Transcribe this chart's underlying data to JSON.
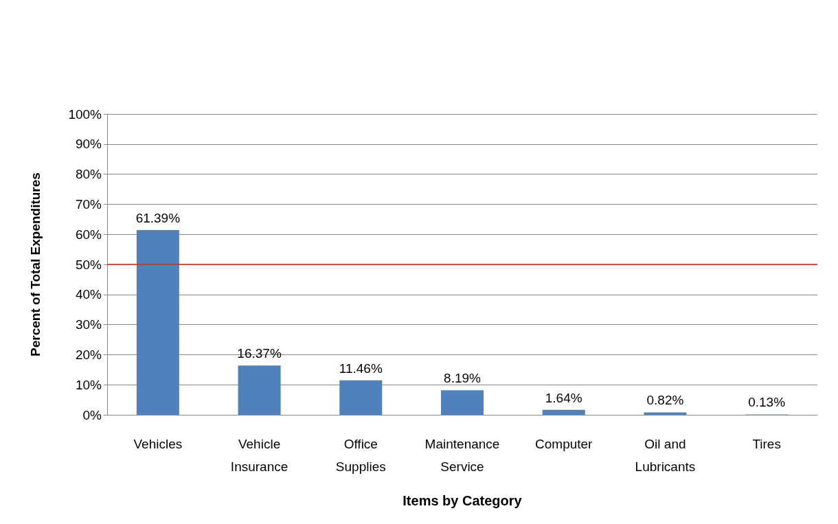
{
  "chart_data": {
    "type": "bar",
    "xlabel": "Items by Category",
    "ylabel": "Percent of Total Expenditures",
    "categories": [
      "Vehicles",
      "Vehicle\nInsurance",
      "Office\nSupplies",
      "Maintenance\nService",
      "Computer",
      "Oil and\nLubricants",
      "Tires"
    ],
    "values": [
      61.39,
      16.37,
      11.46,
      8.19,
      1.64,
      0.82,
      0.13
    ],
    "value_labels": [
      "61.39%",
      "16.37%",
      "11.46%",
      "8.19%",
      "1.64%",
      "0.82%",
      "0.13%"
    ],
    "color": "#4f81bd",
    "ylim": [
      0,
      100
    ],
    "yticks": [
      {
        "value": 0,
        "label": "0%"
      },
      {
        "value": 10,
        "label": "10%"
      },
      {
        "value": 20,
        "label": "20%"
      },
      {
        "value": 30,
        "label": "30%"
      },
      {
        "value": 40,
        "label": "40%"
      },
      {
        "value": 50,
        "label": "50%"
      },
      {
        "value": 60,
        "label": "60%"
      },
      {
        "value": 70,
        "label": "70%"
      },
      {
        "value": 80,
        "label": "80%"
      },
      {
        "value": 90,
        "label": "90%"
      },
      {
        "value": 100,
        "label": "100%"
      }
    ],
    "grid": true,
    "ref_lines": [
      {
        "axis": "y",
        "value": 50,
        "color": "#e8201a"
      }
    ]
  }
}
